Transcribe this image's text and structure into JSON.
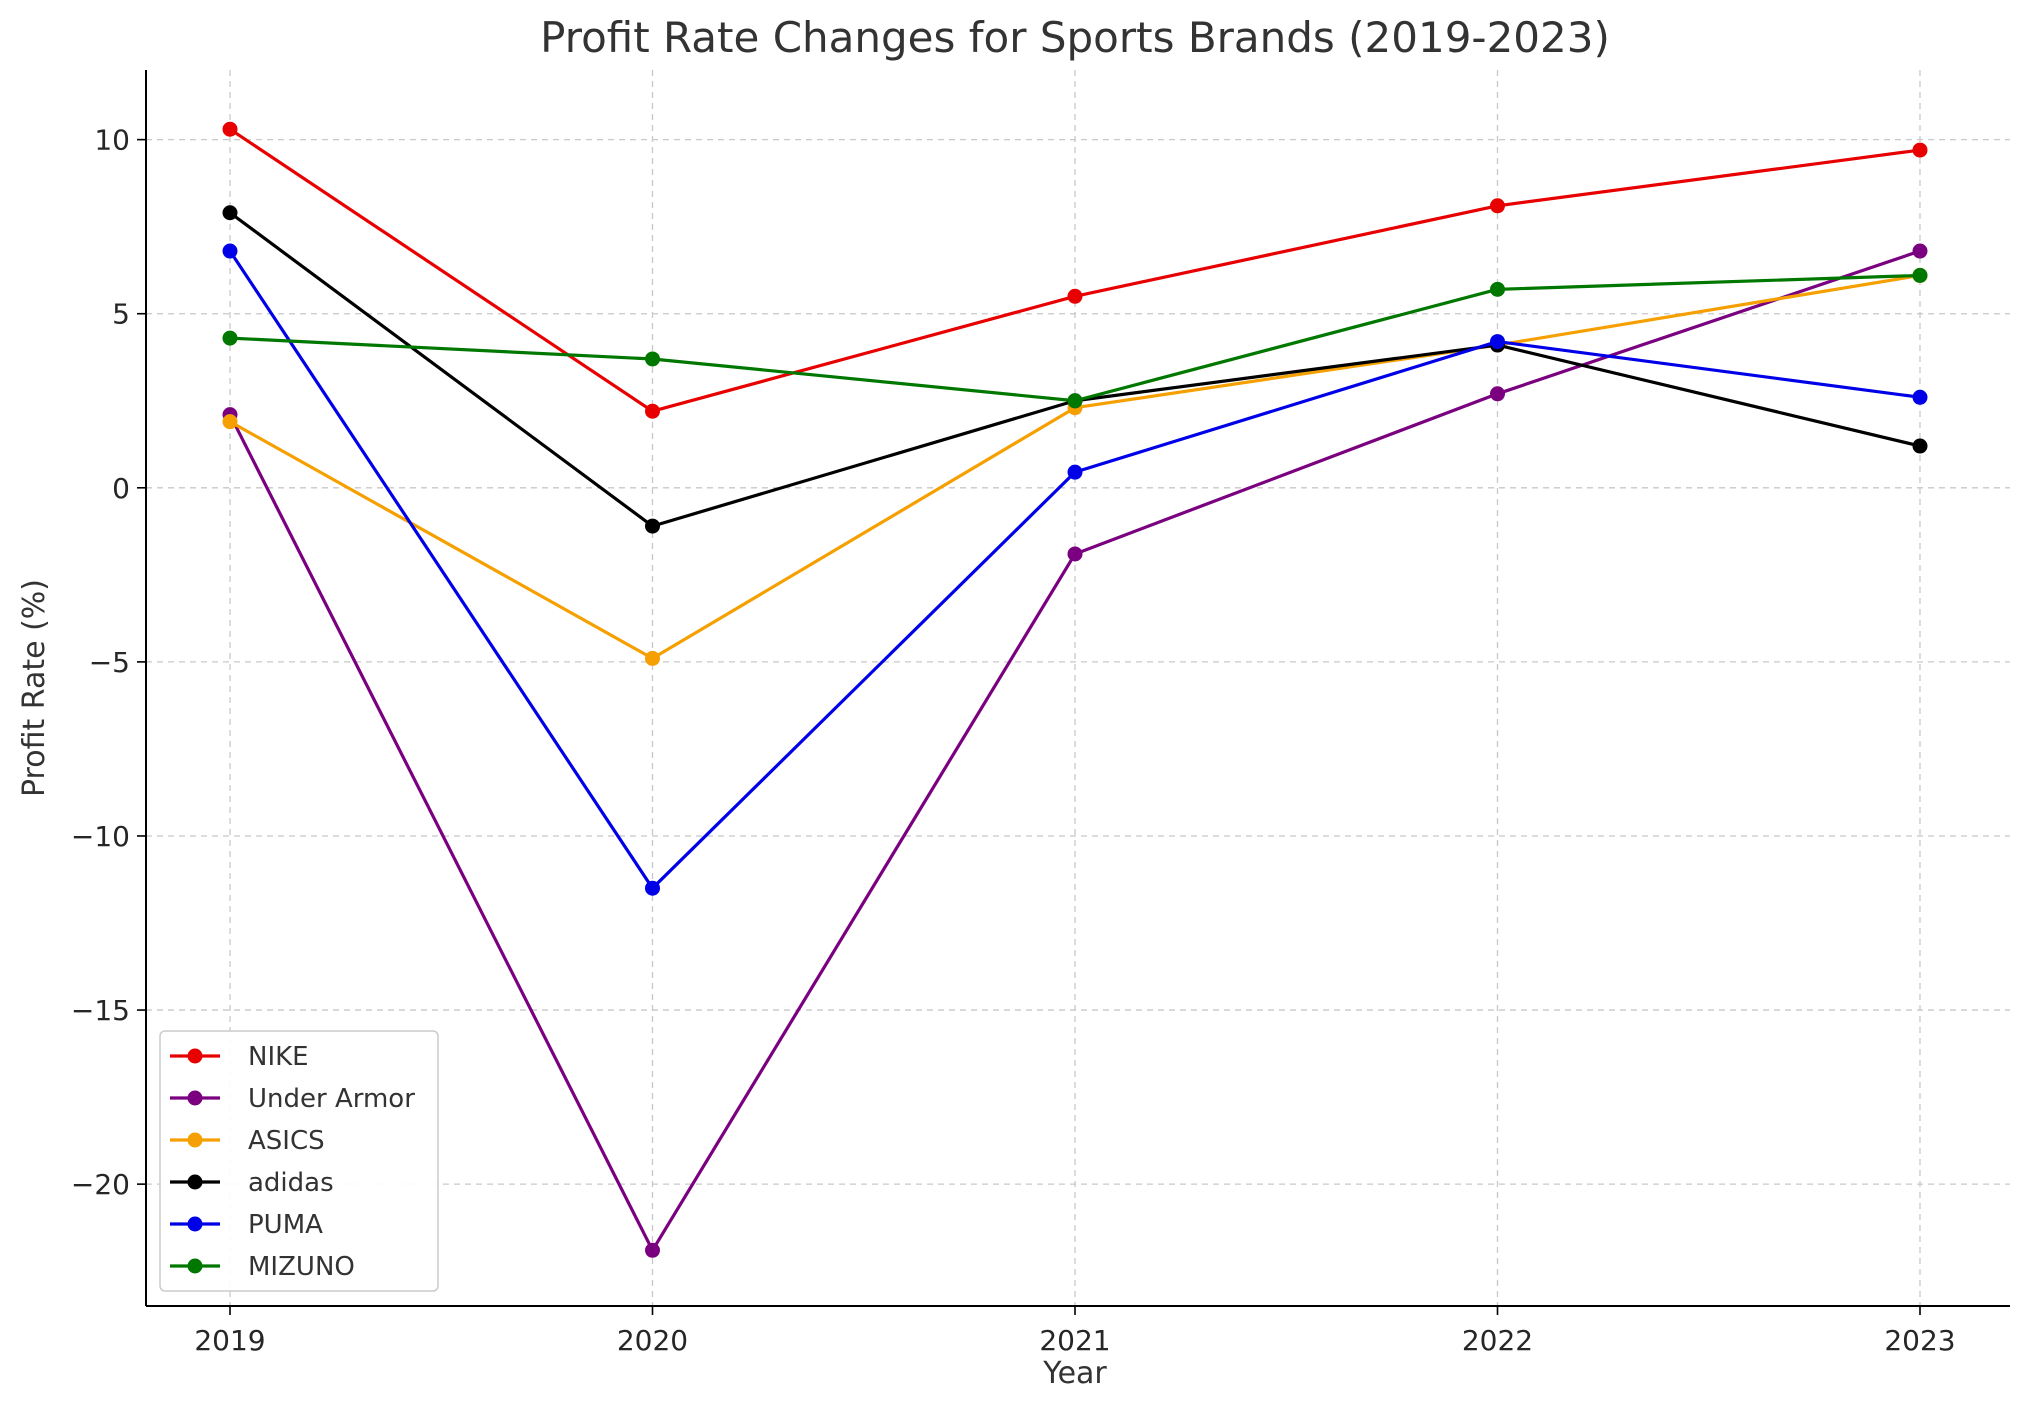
{
  "chart_data": {
    "type": "line",
    "title": "Profit Rate Changes for Sports Brands (2019-2023)",
    "xlabel": "Year",
    "ylabel": "Profit Rate (%)",
    "categories": [
      "2019",
      "2020",
      "2021",
      "2022",
      "2023"
    ],
    "ylim": [
      -23.5,
      12
    ],
    "yticks": [
      10,
      5,
      0,
      -5,
      -10,
      -15,
      -20
    ],
    "ytick_labels": [
      "10",
      "5",
      "0",
      "−5",
      "−10",
      "−15",
      "−20"
    ],
    "grid": true,
    "legend_position": "bottom-left",
    "series": [
      {
        "name": "NIKE",
        "color": "#e80000",
        "values": [
          10.3,
          2.2,
          5.5,
          8.1,
          9.7
        ]
      },
      {
        "name": "Under Armor",
        "color": "#7a0080",
        "values": [
          2.1,
          -21.9,
          -1.9,
          2.7,
          6.8
        ]
      },
      {
        "name": "ASICS",
        "color": "#f5a000",
        "values": [
          1.9,
          -4.9,
          2.3,
          4.1,
          6.1
        ]
      },
      {
        "name": "adidas",
        "color": "#000000",
        "values": [
          7.9,
          -1.1,
          2.5,
          4.1,
          1.2
        ]
      },
      {
        "name": "PUMA",
        "color": "#0000e8",
        "values": [
          6.8,
          -11.5,
          0.45,
          4.2,
          2.6
        ]
      },
      {
        "name": "MIZUNO",
        "color": "#007800",
        "values": [
          4.3,
          3.7,
          2.5,
          5.7,
          6.1
        ]
      }
    ]
  }
}
